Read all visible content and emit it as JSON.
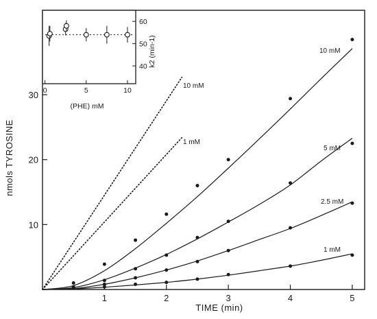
{
  "chart_data": [
    {
      "type": "line",
      "title": "",
      "xlabel": "TIME (min)",
      "ylabel": "nmols TYROSINE",
      "xlim": [
        0,
        5.2
      ],
      "ylim": [
        0,
        43
      ],
      "x_ticks": [
        1,
        2,
        3,
        4,
        5
      ],
      "y_ticks": [
        10,
        20,
        30
      ],
      "series": [
        {
          "name": "10 mM",
          "style": "solid-with-points",
          "points": [
            [
              0.5,
              1.0
            ],
            [
              1.0,
              3.9
            ],
            [
              1.5,
              7.6
            ],
            [
              2.0,
              11.6
            ],
            [
              2.5,
              16.0
            ],
            [
              3.0,
              20.0
            ],
            [
              4.0,
              29.4
            ],
            [
              5.0,
              38.5
            ]
          ],
          "curve": [
            [
              0,
              0
            ],
            [
              0.5,
              0.6
            ],
            [
              1.0,
              2.9
            ],
            [
              1.5,
              6.3
            ],
            [
              2.0,
              10.2
            ],
            [
              2.5,
              14.3
            ],
            [
              3.0,
              18.7
            ],
            [
              3.5,
              23.2
            ],
            [
              4.0,
              27.8
            ],
            [
              4.5,
              32.5
            ],
            [
              5.0,
              37.1
            ]
          ]
        },
        {
          "name": "5 mM",
          "style": "solid-with-points",
          "points": [
            [
              0.5,
              0.4
            ],
            [
              1.0,
              1.4
            ],
            [
              1.5,
              3.2
            ],
            [
              2.0,
              5.3
            ],
            [
              2.5,
              8.0
            ],
            [
              3.0,
              10.5
            ],
            [
              4.0,
              16.4
            ],
            [
              5.0,
              22.5
            ]
          ],
          "curve": [
            [
              0,
              0
            ],
            [
              0.5,
              0.3
            ],
            [
              1.0,
              1.5
            ],
            [
              1.5,
              3.3
            ],
            [
              2.0,
              5.4
            ],
            [
              2.5,
              7.8
            ],
            [
              3.0,
              10.4
            ],
            [
              3.5,
              13.1
            ],
            [
              4.0,
              16.1
            ],
            [
              4.5,
              19.8
            ],
            [
              5.0,
              23.3
            ]
          ]
        },
        {
          "name": "2.5 mM",
          "style": "solid-with-points",
          "points": [
            [
              0.5,
              0.3
            ],
            [
              1.0,
              0.8
            ],
            [
              1.5,
              1.8
            ],
            [
              2.0,
              3.0
            ],
            [
              2.5,
              4.3
            ],
            [
              3.0,
              6.0
            ],
            [
              4.0,
              9.5
            ],
            [
              5.0,
              13.3
            ]
          ],
          "curve": [
            [
              0,
              0
            ],
            [
              0.5,
              0.15
            ],
            [
              1.0,
              0.8
            ],
            [
              1.5,
              1.8
            ],
            [
              2.0,
              3.0
            ],
            [
              2.5,
              4.4
            ],
            [
              3.0,
              6.0
            ],
            [
              3.5,
              7.7
            ],
            [
              4.0,
              9.4
            ],
            [
              4.5,
              11.4
            ],
            [
              5.0,
              13.5
            ]
          ]
        },
        {
          "name": "1 mM",
          "style": "solid-with-points",
          "points": [
            [
              0.5,
              0.2
            ],
            [
              1.0,
              0.4
            ],
            [
              1.5,
              0.8
            ],
            [
              2.0,
              1.1
            ],
            [
              2.5,
              1.6
            ],
            [
              3.0,
              2.3
            ],
            [
              4.0,
              3.6
            ],
            [
              5.0,
              5.3
            ]
          ],
          "curve": [
            [
              0,
              0
            ],
            [
              0.5,
              0.1
            ],
            [
              1.0,
              0.35
            ],
            [
              1.5,
              0.7
            ],
            [
              2.0,
              1.1
            ],
            [
              2.5,
              1.6
            ],
            [
              3.0,
              2.2
            ],
            [
              3.5,
              2.9
            ],
            [
              4.0,
              3.6
            ],
            [
              4.5,
              4.5
            ],
            [
              5.0,
              5.5
            ]
          ]
        },
        {
          "name": "10 mM",
          "style": "dotted",
          "curve": [
            [
              0,
              0
            ],
            [
              2.25,
              32.7
            ]
          ]
        },
        {
          "name": "1 mM",
          "style": "dotted",
          "curve": [
            [
              0,
              0
            ],
            [
              2.25,
              23.4
            ]
          ]
        }
      ],
      "labels": {
        "solid_10mM": "10 mM",
        "solid_5mM": "5 mM",
        "solid_2_5mM": "2.5 mM",
        "solid_1mM": "1 mM",
        "dotted_10mM": "10 mM",
        "dotted_1mM": "1 mM"
      }
    },
    {
      "type": "scatter",
      "title": "",
      "xlabel": "(PHE) mM",
      "ylabel": "k2 (min-1)",
      "xlim": [
        -0.3,
        11
      ],
      "ylim": [
        32,
        65
      ],
      "x_ticks": [
        0,
        5,
        10
      ],
      "y_ticks": [
        40,
        50,
        60
      ],
      "y_axis_side": "right",
      "points": [
        {
          "x": 0.5,
          "y": 53.5,
          "err": 4.5
        },
        {
          "x": 0.6,
          "y": 54.5,
          "err": 3.5
        },
        {
          "x": 2.5,
          "y": 56.5,
          "err": 2.8
        },
        {
          "x": 2.6,
          "y": 58.0,
          "err": 2.5
        },
        {
          "x": 5.0,
          "y": 54.0,
          "err": 3.0
        },
        {
          "x": 7.5,
          "y": 54.0,
          "err": 4.0
        },
        {
          "x": 10.0,
          "y": 54.0,
          "err": 3.5
        }
      ],
      "reference_line": 54.0
    }
  ]
}
